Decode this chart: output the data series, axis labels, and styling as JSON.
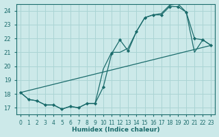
{
  "xlabel": "Humidex (Indice chaleur)",
  "ylabel": "",
  "xlim": [
    -0.5,
    23.5
  ],
  "ylim": [
    16.5,
    24.5
  ],
  "yticks": [
    17,
    18,
    19,
    20,
    21,
    22,
    23,
    24
  ],
  "xticks": [
    0,
    1,
    2,
    3,
    4,
    5,
    6,
    7,
    8,
    9,
    10,
    11,
    12,
    13,
    14,
    15,
    16,
    17,
    18,
    19,
    20,
    21,
    22,
    23
  ],
  "bg_color": "#cce9e9",
  "grid_color": "#aad4d4",
  "line_color": "#1a6b6b",
  "line1_x": [
    0,
    1,
    2,
    3,
    4,
    5,
    6,
    7,
    8,
    9,
    10,
    11,
    12,
    13,
    14,
    15,
    16,
    17,
    18,
    19,
    20,
    21,
    22,
    23
  ],
  "line1_y": [
    18.1,
    17.6,
    17.5,
    17.2,
    17.2,
    16.9,
    17.1,
    17.0,
    17.3,
    17.3,
    18.5,
    20.9,
    21.9,
    21.1,
    22.5,
    23.5,
    23.7,
    23.7,
    24.3,
    24.3,
    23.9,
    22.0,
    21.9,
    21.5
  ],
  "line2_x": [
    0,
    1,
    2,
    3,
    4,
    5,
    6,
    7,
    8,
    9,
    10,
    11,
    12,
    13,
    14,
    15,
    16,
    17,
    18,
    19,
    20,
    21,
    22,
    23
  ],
  "line2_y": [
    18.1,
    17.6,
    17.5,
    17.2,
    17.2,
    16.9,
    17.1,
    17.0,
    17.3,
    17.3,
    19.8,
    21.0,
    21.0,
    21.3,
    22.5,
    23.5,
    23.7,
    23.8,
    24.4,
    24.5,
    23.9,
    21.0,
    21.9,
    21.5
  ],
  "line3_x": [
    0,
    23
  ],
  "line3_y": [
    18.1,
    21.5
  ]
}
